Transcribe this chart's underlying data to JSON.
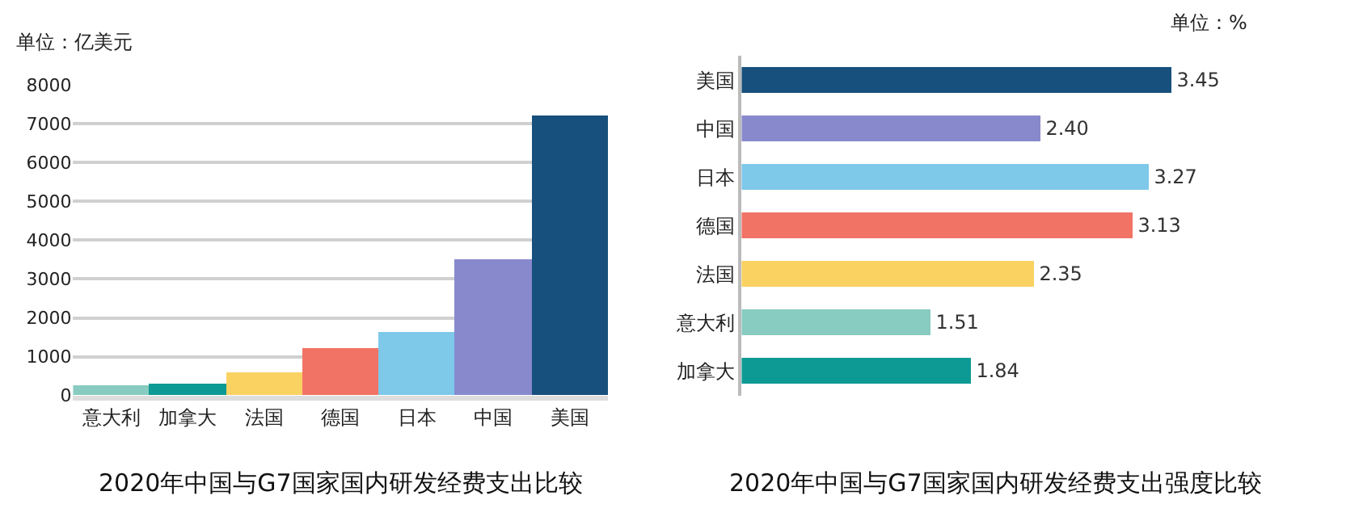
{
  "chart_data": [
    {
      "type": "bar",
      "title": "2020年中国与G7国家国内研发经费支出比较",
      "categories": [
        "意大利",
        "加拿大",
        "法国",
        "德国",
        "日本",
        "中国",
        "美国"
      ],
      "values": [
        260,
        300,
        610,
        1210,
        1630,
        3530,
        7210
      ],
      "colors": [
        "#88cbc0",
        "#0e9a94",
        "#f9d262",
        "#f17366",
        "#7ec8ea",
        "#8889cd",
        "#17507c"
      ],
      "ylim": [
        0,
        8000
      ],
      "yticks": [
        0,
        1000,
        2000,
        3000,
        4000,
        5000,
        6000,
        7000,
        8000
      ],
      "grid": "y",
      "annotations": [
        "单位：亿美元"
      ]
    },
    {
      "type": "bar",
      "orientation": "horizontal",
      "title": "2020年中国与G7国家国内研发经费支出强度比较",
      "categories": [
        "美国",
        "中国",
        "日本",
        "德国",
        "法国",
        "意大利",
        "加拿大"
      ],
      "values": [
        3.45,
        2.4,
        3.27,
        3.13,
        2.35,
        1.51,
        1.84
      ],
      "value_labels": [
        "3.45",
        "2.40",
        "3.27",
        "3.13",
        "2.35",
        "1.51",
        "1.84"
      ],
      "colors": [
        "#17507c",
        "#8889cd",
        "#7ec8ea",
        "#f17366",
        "#f9d262",
        "#88cbc0",
        "#0e9a94"
      ],
      "tick_labels": "y",
      "annotations": [
        "单位：%"
      ]
    }
  ]
}
